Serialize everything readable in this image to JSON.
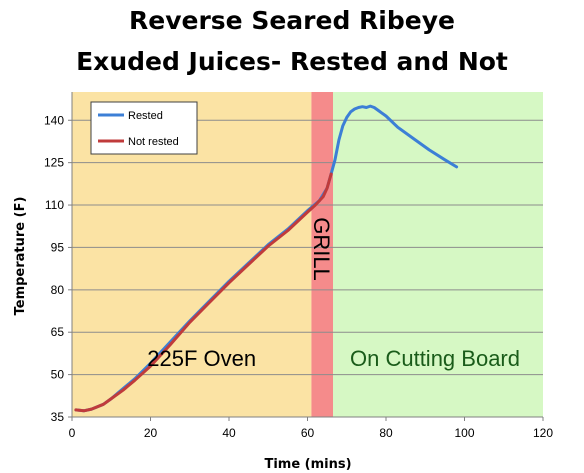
{
  "chart_data": {
    "type": "line",
    "title_line1": "Reverse Seared Ribeye",
    "title_line2": "Exuded Juices- Rested and Not",
    "xlabel": "Time (mins)",
    "ylabel": "Temperature (F)",
    "xlim": [
      0,
      120
    ],
    "ylim": [
      35,
      150
    ],
    "xticks": [
      0,
      20,
      40,
      60,
      80,
      100,
      120
    ],
    "yticks": [
      35,
      50,
      65,
      80,
      95,
      110,
      125,
      140
    ],
    "grid": "horizontal",
    "legend_position": "top-left",
    "regions": [
      {
        "label": "225F Oven",
        "x_start": 0,
        "x_end": 61,
        "color": "#fbe3a4",
        "text_color": "#000000"
      },
      {
        "label": "GRILL",
        "x_start": 61,
        "x_end": 66.5,
        "color": "#f58b8b",
        "text_color": "#000000",
        "vertical": true
      },
      {
        "label": "On Cutting Board",
        "x_start": 66.5,
        "x_end": 120,
        "color": "#d6f8c4",
        "text_color": "#1a5c1a"
      }
    ],
    "series": [
      {
        "name": "Rested",
        "color": "#3c7fd6",
        "points": [
          [
            1,
            37.5
          ],
          [
            3,
            37.2
          ],
          [
            5,
            37.8
          ],
          [
            8,
            39.5
          ],
          [
            10,
            41.5
          ],
          [
            13,
            45
          ],
          [
            16,
            48.5
          ],
          [
            20,
            54
          ],
          [
            25,
            61.5
          ],
          [
            30,
            69
          ],
          [
            35,
            76
          ],
          [
            40,
            83
          ],
          [
            45,
            89.5
          ],
          [
            50,
            96
          ],
          [
            55,
            101.5
          ],
          [
            60,
            108
          ],
          [
            63,
            111.5
          ],
          [
            65,
            116
          ],
          [
            66,
            121
          ],
          [
            67,
            126
          ],
          [
            68,
            133
          ],
          [
            69,
            138
          ],
          [
            70,
            141
          ],
          [
            71,
            143
          ],
          [
            72,
            144
          ],
          [
            73,
            144.5
          ],
          [
            74,
            144.8
          ],
          [
            75,
            144.5
          ],
          [
            76,
            145
          ],
          [
            77,
            144.5
          ],
          [
            78,
            143.5
          ],
          [
            80,
            141.5
          ],
          [
            83,
            137.5
          ],
          [
            87,
            133.5
          ],
          [
            91,
            129.5
          ],
          [
            95,
            126
          ],
          [
            98,
            123.5
          ]
        ]
      },
      {
        "name": "Not rested",
        "color": "#c03b3b",
        "points": [
          [
            1,
            37.5
          ],
          [
            3,
            37.2
          ],
          [
            5,
            37.8
          ],
          [
            8,
            39.5
          ],
          [
            10,
            41.5
          ],
          [
            13,
            44.5
          ],
          [
            16,
            48
          ],
          [
            20,
            53
          ],
          [
            25,
            60.5
          ],
          [
            30,
            68.5
          ],
          [
            35,
            75.5
          ],
          [
            40,
            82.5
          ],
          [
            45,
            89
          ],
          [
            50,
            95.5
          ],
          [
            55,
            101
          ],
          [
            60,
            107.5
          ],
          [
            62,
            110
          ],
          [
            64,
            113
          ],
          [
            65,
            116
          ],
          [
            66,
            121
          ]
        ]
      }
    ]
  }
}
